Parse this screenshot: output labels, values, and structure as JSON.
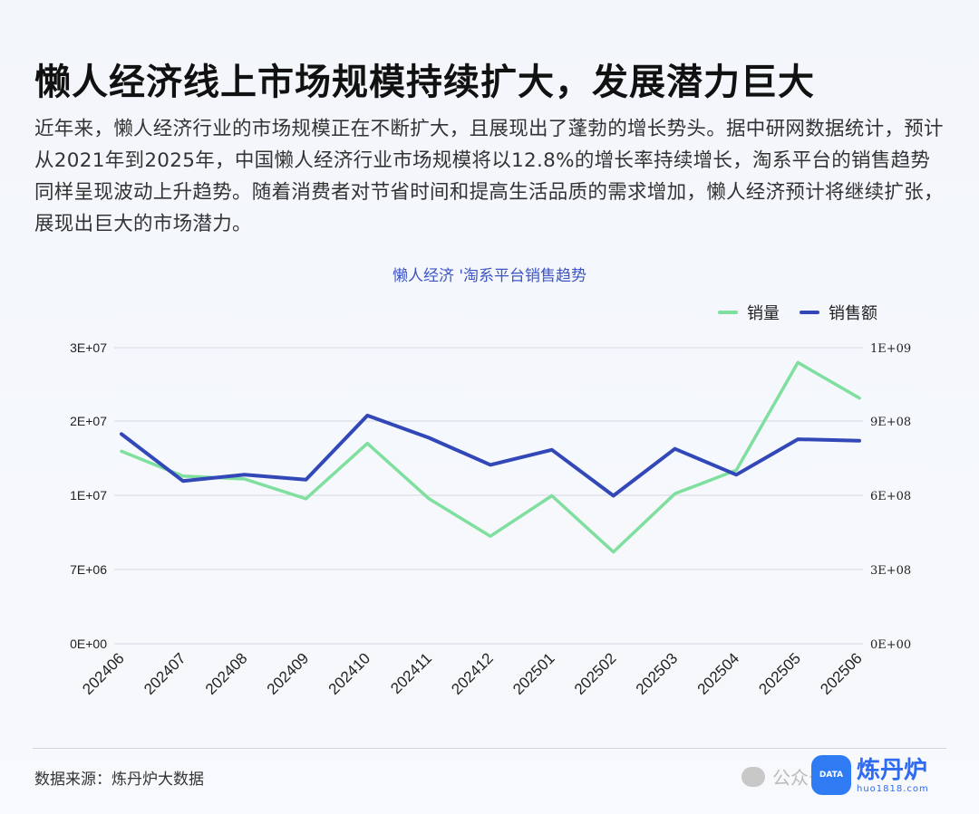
{
  "header": {
    "title": "懒人经济线上市场规模持续扩大，发展潜力巨大",
    "intro": "近年来，懒人经济行业的市场规模正在不断扩大，且展现出了蓬勃的增长势头。据中研网数据统计，预计从2021年到2025年，中国懒人经济行业市场规模将以12.8%的增长率持续增长，淘系平台的销售趋势同样呈现波动上升趋势。随着消费者对节省时间和提高生活品质的需求增加，懒人经济预计将继续扩张，展现出巨大的市场潜力。"
  },
  "chart_data": {
    "type": "line",
    "title": "懒人经济 '淘系平台销售趋势",
    "categories": [
      "202406",
      "202407",
      "202408",
      "202409",
      "202410",
      "202411",
      "202412",
      "202501",
      "202502",
      "202503",
      "202504",
      "202505",
      "202506"
    ],
    "series": [
      {
        "name": "销量",
        "axis": "left",
        "color": "#7fdf9f",
        "values": [
          19500000,
          17000000,
          16700000,
          14700000,
          20300000,
          14700000,
          10900000,
          15000000,
          9300000,
          15200000,
          17600000,
          28500000,
          24900000
        ]
      },
      {
        "name": "销售额",
        "axis": "right",
        "color": "#3248b8",
        "values": [
          850000000,
          660000000,
          685000000,
          665000000,
          925000000,
          835000000,
          725000000,
          786000000,
          600000000,
          790000000,
          685000000,
          829000000,
          823000000
        ]
      }
    ],
    "left_axis": {
      "ticks": [
        "0E+00",
        "7E+06",
        "1E+07",
        "2E+07",
        "3E+07"
      ],
      "ylim": [
        0,
        30000000
      ]
    },
    "right_axis": {
      "ticks": [
        "0E+00",
        "3E+08",
        "6E+08",
        "9E+08",
        "1E+09"
      ],
      "ylim": [
        0,
        1200000000
      ]
    },
    "grid": true,
    "legend_position": "top-right"
  },
  "footer": {
    "source": "数据来源：炼丹炉大数据",
    "wechat_text": "公众号",
    "brand_name": "炼丹炉",
    "brand_url": "huo1818.com",
    "brand_badge": "DATA"
  }
}
